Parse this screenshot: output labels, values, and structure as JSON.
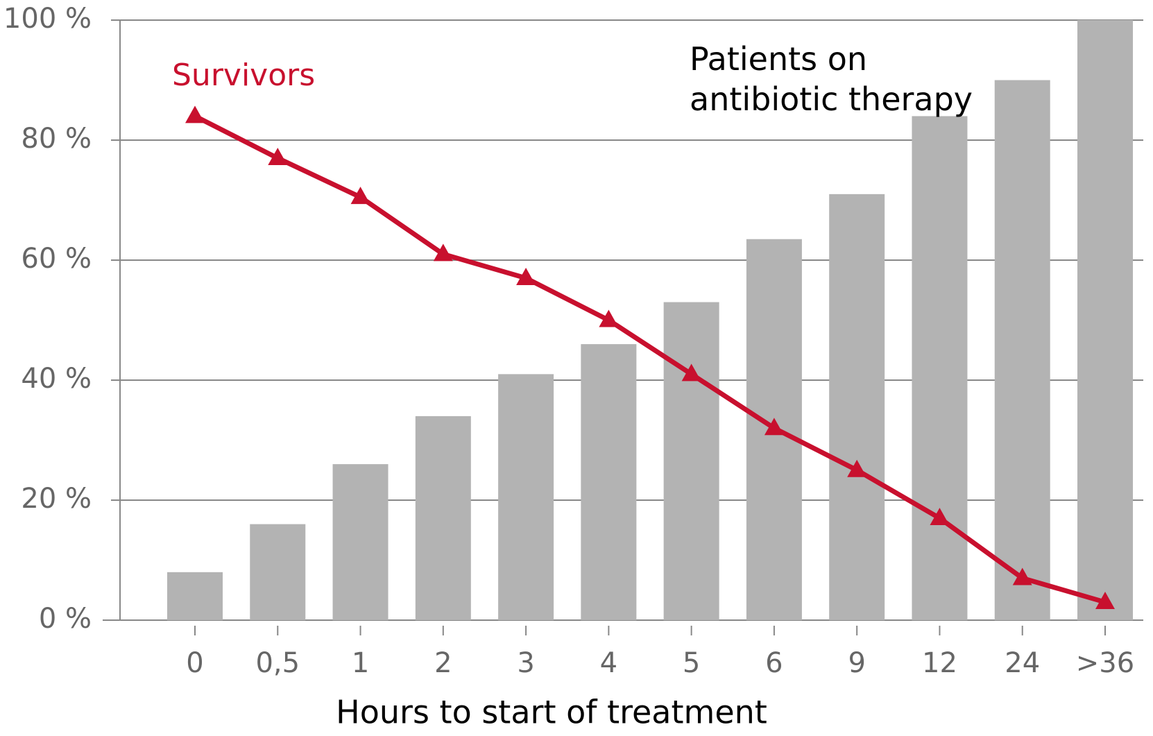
{
  "chart_data": {
    "type": "bar_line",
    "x_label": "Hours to start of treatment",
    "categories": [
      "0",
      "0,5",
      "1",
      "2",
      "3",
      "4",
      "5",
      "6",
      "9",
      "12",
      "24",
      ">36"
    ],
    "series": [
      {
        "name": "Patients on antibiotic therapy",
        "type": "bar",
        "color": "#b3b3b3",
        "values": [
          8,
          16,
          26,
          34,
          41,
          46,
          53,
          63.5,
          71,
          84,
          90,
          100
        ]
      },
      {
        "name": "Survivors",
        "type": "line",
        "color": "#c8102e",
        "values": [
          84,
          77,
          70.5,
          61,
          57,
          50,
          41,
          32,
          25,
          17,
          7,
          3
        ]
      }
    ],
    "ylim": [
      0,
      100
    ],
    "yticks": [
      {
        "value": 0,
        "label": "0 %"
      },
      {
        "value": 20,
        "label": "20 %"
      },
      {
        "value": 40,
        "label": "40 %"
      },
      {
        "value": 60,
        "label": "60 %"
      },
      {
        "value": 80,
        "label": "80 %"
      },
      {
        "value": 100,
        "label": "100 %"
      }
    ],
    "grid": true
  }
}
